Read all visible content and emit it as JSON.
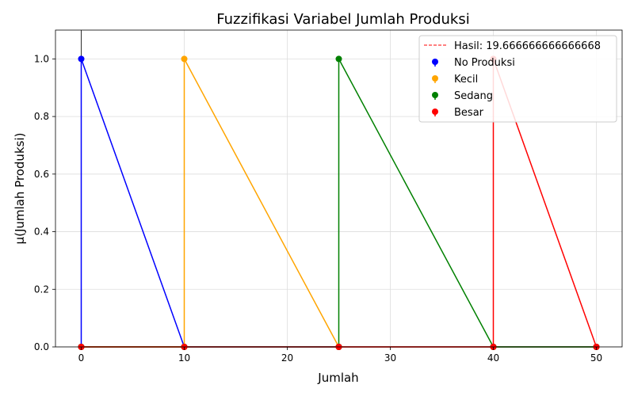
{
  "chart_data": {
    "type": "line",
    "title": "Fuzzifikasi Variabel Jumlah Produksi",
    "xlabel": "Jumlah",
    "ylabel": "μ(Jumlah Produksi)",
    "xlim": [
      -2.5,
      52.5
    ],
    "ylim": [
      0,
      1.1
    ],
    "xticks": [
      "0",
      "10",
      "20",
      "30",
      "40",
      "50"
    ],
    "yticks": [
      "0.0",
      "0.2",
      "0.4",
      "0.6",
      "0.8",
      "1.0"
    ],
    "grid": true,
    "legend_position": "top-right",
    "result_line": {
      "label": "Hasil: 19.666666666666668",
      "x": 19.666666666666668,
      "color": "#ff0000"
    },
    "series": [
      {
        "name": "No Produksi",
        "color": "#0000ff",
        "x": [
          0,
          0,
          10,
          25,
          40,
          50
        ],
        "y": [
          0,
          1,
          0,
          0,
          0,
          0
        ]
      },
      {
        "name": "Kecil",
        "color": "#ffa500",
        "x": [
          0,
          10,
          10,
          25,
          40,
          50
        ],
        "y": [
          0,
          0,
          1,
          0,
          0,
          0
        ]
      },
      {
        "name": "Sedang",
        "color": "#008000",
        "x": [
          0,
          10,
          25,
          25,
          40,
          50
        ],
        "y": [
          0,
          0,
          0,
          1,
          0,
          0
        ]
      },
      {
        "name": "Besar",
        "color": "#ff0000",
        "x": [
          0,
          10,
          25,
          40,
          40,
          50
        ],
        "y": [
          0,
          0,
          0,
          0,
          1,
          0
        ]
      }
    ]
  }
}
